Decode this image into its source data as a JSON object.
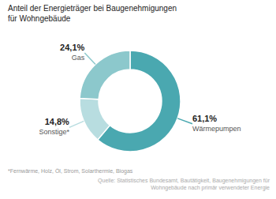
{
  "chart_data": {
    "type": "pie",
    "title": "Anteil der Energieträger bei Baugenehmigungen\nfür Wohngebäude",
    "categories": [
      "Wärmepumpen",
      "Sonstige*",
      "Gas"
    ],
    "values": [
      61.1,
      14.8,
      24.1
    ],
    "value_labels": [
      "61,1%",
      "14,8%",
      "24,1%"
    ],
    "colors": [
      "#4aa8b0",
      "#b8dde0",
      "#8cc8cc"
    ],
    "data_labels": true,
    "annotations": [
      "*Fernwärme, Holz, Öl, Strom, Solarthermie, Biogas",
      "Quelle: Statistisches Bundesamt, Bautätigkeit, Baugenehmigungen für\nWohngebäude nach primär verwendeter Energie"
    ]
  }
}
